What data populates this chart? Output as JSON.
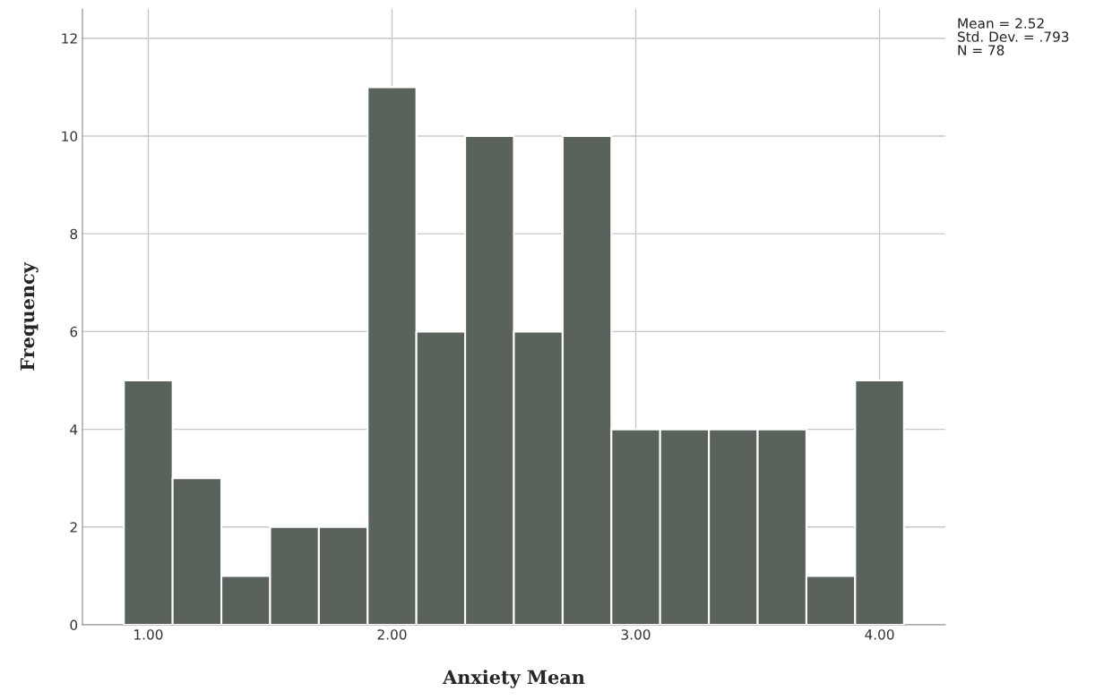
{
  "chart_data": {
    "type": "histogram",
    "xlabel": "Anxiety Mean",
    "ylabel": "Frequency",
    "bins": [
      0.9,
      1.1,
      1.3,
      1.5,
      1.7,
      1.9,
      2.1,
      2.3,
      2.5,
      2.7,
      2.9,
      3.1,
      3.3,
      3.5,
      3.7,
      3.9,
      4.1
    ],
    "values": [
      5,
      3,
      1,
      2,
      2,
      11,
      6,
      10,
      6,
      10,
      4,
      4,
      4,
      4,
      1,
      5
    ],
    "color": "#5a625c",
    "xlim": [
      0.73,
      4.27
    ],
    "xticks": [
      {
        "value": 1,
        "label": "1.00"
      },
      {
        "value": 2,
        "label": "2.00"
      },
      {
        "value": 3,
        "label": "3.00"
      },
      {
        "value": 4,
        "label": "4.00"
      }
    ],
    "ylim": [
      0,
      12.6
    ],
    "yticks": [
      0,
      2,
      4,
      6,
      8,
      10,
      12
    ],
    "grid": true,
    "annotations": [
      "Mean = 2.52",
      "Std. Dev. = .793",
      "N = 78"
    ]
  }
}
